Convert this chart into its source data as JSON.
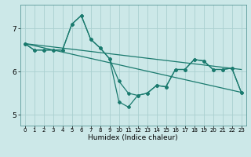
{
  "title": "",
  "xlabel": "Humidex (Indice chaleur)",
  "background_color": "#cce8e8",
  "grid_color": "#aad0d0",
  "line_color": "#1a7a6e",
  "xlim": [
    -0.5,
    23.5
  ],
  "ylim": [
    4.75,
    7.55
  ],
  "yticks": [
    5,
    6,
    7
  ],
  "xticks": [
    0,
    1,
    2,
    3,
    4,
    5,
    6,
    7,
    8,
    9,
    10,
    11,
    12,
    13,
    14,
    15,
    16,
    17,
    18,
    19,
    20,
    21,
    22,
    23
  ],
  "line1_x": [
    0,
    23
  ],
  "line1_y": [
    6.65,
    6.05
  ],
  "line2_x": [
    0,
    23
  ],
  "line2_y": [
    6.65,
    5.52
  ],
  "line3_x": [
    0,
    1,
    2,
    3,
    4,
    5,
    6,
    7,
    8,
    9,
    10,
    11,
    12,
    13,
    14,
    15,
    16,
    17,
    18,
    19,
    20,
    21,
    22,
    23
  ],
  "line3_y": [
    6.65,
    6.5,
    6.5,
    6.5,
    6.5,
    7.1,
    7.3,
    6.75,
    6.55,
    6.3,
    5.3,
    5.18,
    5.45,
    5.5,
    5.68,
    5.65,
    6.05,
    6.05,
    6.28,
    6.25,
    6.05,
    6.05,
    6.08,
    5.52
  ],
  "line4_x": [
    0,
    1,
    2,
    3,
    4,
    5,
    6,
    7,
    8,
    9,
    10,
    11,
    12,
    13,
    14,
    15,
    16,
    17,
    18,
    19,
    20,
    21,
    22,
    23
  ],
  "line4_y": [
    6.65,
    6.5,
    6.5,
    6.5,
    6.5,
    7.1,
    7.3,
    6.75,
    6.55,
    6.3,
    5.78,
    5.5,
    5.45,
    5.5,
    5.68,
    5.65,
    6.05,
    6.05,
    6.28,
    6.25,
    6.05,
    6.05,
    6.08,
    5.52
  ],
  "xlabel_fontsize": 6.5,
  "tick_fontsize_x": 5.0,
  "tick_fontsize_y": 6.5
}
